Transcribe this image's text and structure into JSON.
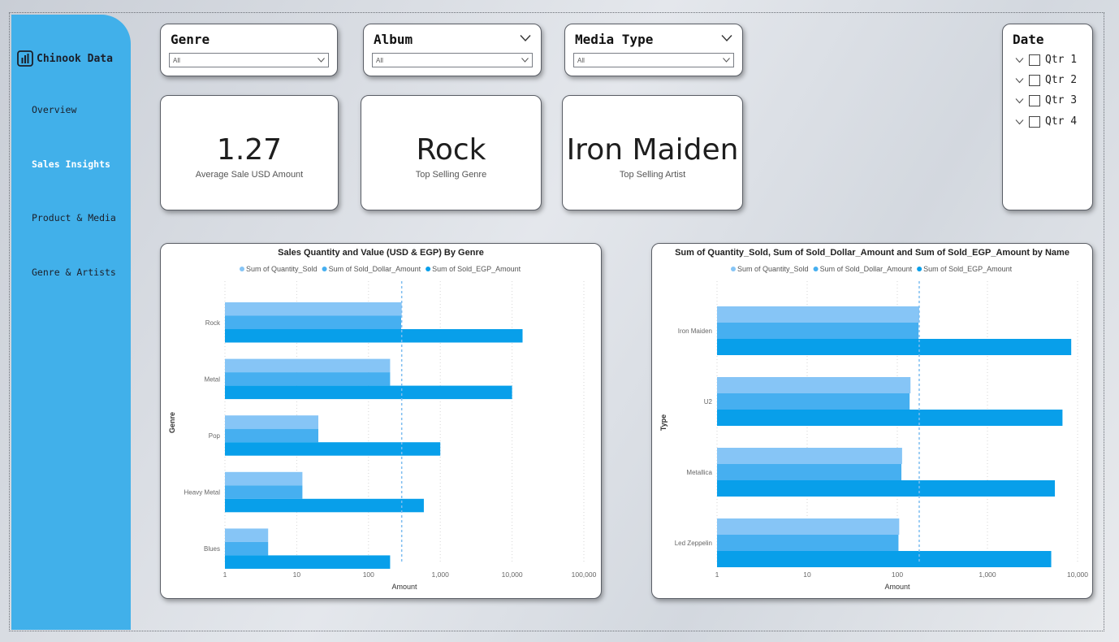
{
  "app": {
    "title": "Chinook Data"
  },
  "nav": [
    {
      "label": "Overview",
      "active": false
    },
    {
      "label": "Sales Insights",
      "active": true
    },
    {
      "label": "Product & Media",
      "active": false
    },
    {
      "label": "Genre & Artists",
      "active": false
    }
  ],
  "slicers": {
    "genre": {
      "title": "Genre",
      "value": "All"
    },
    "album": {
      "title": "Album",
      "value": "All"
    },
    "media_type": {
      "title": "Media Type",
      "value": "All"
    }
  },
  "date_slicer": {
    "title": "Date",
    "items": [
      "Qtr 1",
      "Qtr 2",
      "Qtr 3",
      "Qtr 4"
    ]
  },
  "kpis": [
    {
      "value": "1.27",
      "label": "Average Sale USD Amount"
    },
    {
      "value": "Rock",
      "label": "Top Selling Genre"
    },
    {
      "value": "Iron Maiden",
      "label": "Top Selling Artist"
    }
  ],
  "colors": {
    "sidebar": "#41b0ea",
    "series1": "#86c5f6",
    "series2": "#46aff0",
    "series3": "#089fea",
    "refline": "#7dbdf0"
  },
  "chart_data": [
    {
      "type": "bar",
      "orientation": "horizontal",
      "title": "Sales Quantity and Value (USD & EGP) By Genre",
      "xlabel": "Amount",
      "ylabel": "Genre",
      "xscale": "log",
      "xlim": [
        1,
        100000
      ],
      "xticks": [
        "1",
        "10",
        "100",
        "1,000",
        "10,000",
        "100,000"
      ],
      "legend": "top",
      "reference_line": 290,
      "categories": [
        "Rock",
        "Metal",
        "Pop",
        "Heavy Metal",
        "Blues"
      ],
      "series": [
        {
          "name": "Sum of Quantity_Sold",
          "values": [
            290,
            200,
            20,
            12,
            4
          ]
        },
        {
          "name": "Sum of Sold_Dollar_Amount",
          "values": [
            285,
            200,
            20,
            12,
            4
          ]
        },
        {
          "name": "Sum of Sold_EGP_Amount",
          "values": [
            14000,
            10000,
            1000,
            590,
            200
          ]
        }
      ]
    },
    {
      "type": "bar",
      "orientation": "horizontal",
      "title": "Sum of Quantity_Sold, Sum of Sold_Dollar_Amount and Sum of Sold_EGP_Amount by Name",
      "xlabel": "Amount",
      "ylabel": "Type",
      "xscale": "log",
      "xlim": [
        1,
        10000
      ],
      "xticks": [
        "1",
        "10",
        "100",
        "1,000",
        "10,000"
      ],
      "legend": "top",
      "reference_line": 175,
      "categories": [
        "Iron Maiden",
        "U2",
        "Metallica",
        "Led Zeppelin"
      ],
      "series": [
        {
          "name": "Sum of Quantity_Sold",
          "values": [
            175,
            140,
            113,
            105
          ]
        },
        {
          "name": "Sum of Sold_Dollar_Amount",
          "values": [
            172,
            137,
            111,
            103
          ]
        },
        {
          "name": "Sum of Sold_EGP_Amount",
          "values": [
            8500,
            6800,
            5600,
            5100
          ]
        }
      ]
    }
  ]
}
